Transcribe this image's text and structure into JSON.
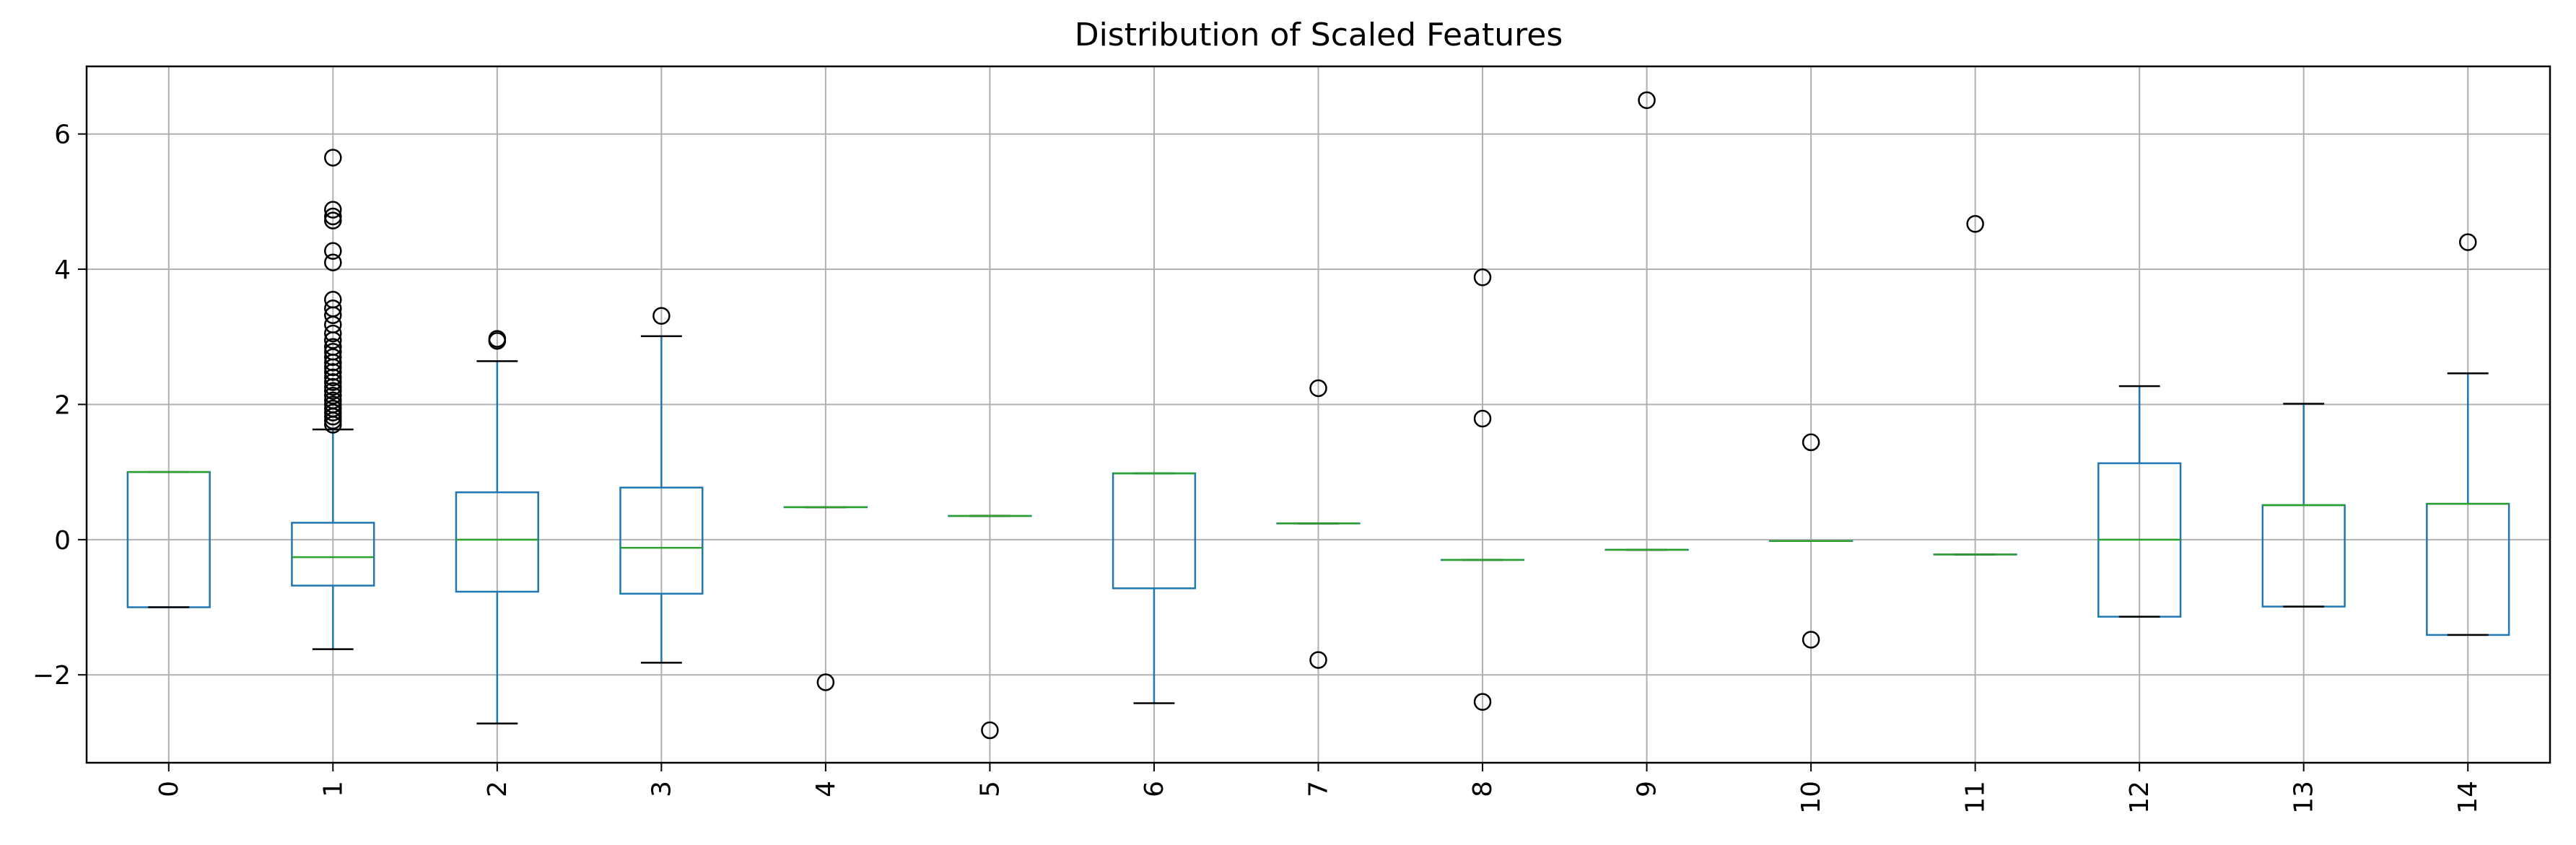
{
  "chart_data": {
    "type": "boxplot",
    "title": "Distribution of Scaled Features",
    "xlabel": "",
    "ylabel": "",
    "ylim": [
      -3.3,
      7.0
    ],
    "yticks": [
      -2,
      0,
      2,
      4,
      6
    ],
    "grid": true,
    "categories": [
      "0",
      "1",
      "2",
      "3",
      "4",
      "5",
      "6",
      "7",
      "8",
      "9",
      "10",
      "11",
      "12",
      "13",
      "14"
    ],
    "boxes": [
      {
        "q1": -1.0,
        "median": 1.0,
        "q3": 1.0,
        "whislo": -1.0,
        "whishi": 1.0,
        "fliers": []
      },
      {
        "q1": -0.68,
        "median": -0.26,
        "q3": 0.25,
        "whislo": -1.62,
        "whishi": 1.63,
        "fliers": [
          5.65,
          4.88,
          4.78,
          4.72,
          4.27,
          4.1,
          3.55,
          3.42,
          3.32,
          3.18,
          3.05,
          2.95,
          2.85,
          2.78,
          2.7,
          2.62,
          2.55,
          2.48,
          2.4,
          2.33,
          2.26,
          2.2,
          2.13,
          2.06,
          2.0,
          1.94,
          1.88,
          1.82,
          1.76,
          1.7
        ]
      },
      {
        "q1": -0.77,
        "median": 0.0,
        "q3": 0.7,
        "whislo": -2.72,
        "whishi": 2.64,
        "fliers": [
          2.97,
          2.94
        ]
      },
      {
        "q1": -0.8,
        "median": -0.12,
        "q3": 0.77,
        "whislo": -1.82,
        "whishi": 3.01,
        "fliers": [
          3.31
        ]
      },
      {
        "q1": 0.48,
        "median": 0.48,
        "q3": 0.48,
        "whislo": 0.48,
        "whishi": 0.48,
        "fliers": [
          -2.11
        ]
      },
      {
        "q1": 0.35,
        "median": 0.35,
        "q3": 0.35,
        "whislo": 0.35,
        "whishi": 0.35,
        "fliers": [
          -2.82
        ]
      },
      {
        "q1": -0.72,
        "median": 0.98,
        "q3": 0.98,
        "whislo": -2.42,
        "whishi": 0.98,
        "fliers": []
      },
      {
        "q1": 0.24,
        "median": 0.24,
        "q3": 0.24,
        "whislo": 0.24,
        "whishi": 0.24,
        "fliers": [
          2.24,
          -1.78
        ]
      },
      {
        "q1": -0.3,
        "median": -0.3,
        "q3": -0.3,
        "whislo": -0.3,
        "whishi": -0.3,
        "fliers": [
          3.88,
          1.79,
          -2.4
        ]
      },
      {
        "q1": -0.15,
        "median": -0.15,
        "q3": -0.15,
        "whislo": -0.15,
        "whishi": -0.15,
        "fliers": [
          6.5
        ]
      },
      {
        "q1": -0.02,
        "median": -0.02,
        "q3": -0.02,
        "whislo": -0.02,
        "whishi": -0.02,
        "fliers": [
          1.44,
          -1.48
        ]
      },
      {
        "q1": -0.22,
        "median": -0.22,
        "q3": -0.22,
        "whislo": -0.22,
        "whishi": -0.22,
        "fliers": [
          4.67
        ]
      },
      {
        "q1": -1.14,
        "median": 0.0,
        "q3": 1.13,
        "whislo": -1.14,
        "whishi": 2.27,
        "fliers": []
      },
      {
        "q1": -0.99,
        "median": 0.51,
        "q3": 0.51,
        "whislo": -0.99,
        "whishi": 2.01,
        "fliers": []
      },
      {
        "q1": -1.41,
        "median": 0.53,
        "q3": 0.53,
        "whislo": -1.41,
        "whishi": 2.46,
        "fliers": [
          4.4
        ]
      }
    ],
    "colors": {
      "box": "#1f77b4",
      "median": "#2ca02c",
      "whisker_cap": "#000000",
      "flier": "#000000",
      "grid": "#b0b0b0",
      "axes": "#000000"
    }
  }
}
